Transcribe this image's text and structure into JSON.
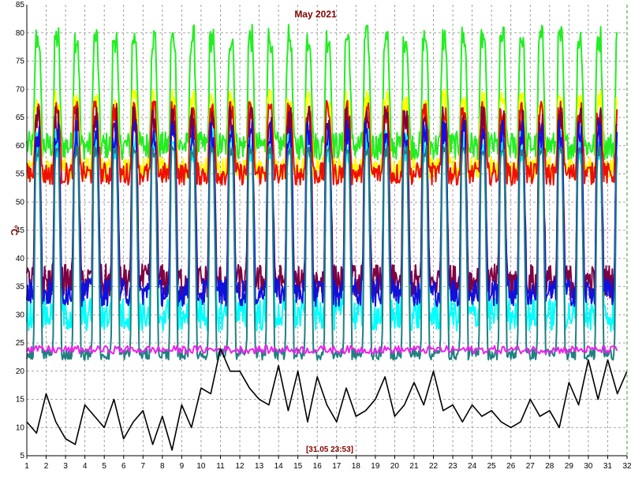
{
  "chart_data": {
    "type": "line",
    "title": "May 2021",
    "ylabel": "°C",
    "footer": "[31.05 23:53]",
    "xlim": [
      1,
      32
    ],
    "ylim": [
      5,
      85
    ],
    "x_ticks": [
      "1",
      "2",
      "3",
      "4",
      "5",
      "6",
      "7",
      "8",
      "9",
      "10",
      "11",
      "12",
      "13",
      "14",
      "15",
      "16",
      "17",
      "18",
      "19",
      "20",
      "21",
      "22",
      "23",
      "24",
      "25",
      "26",
      "27",
      "28",
      "29",
      "30",
      "31",
      "32"
    ],
    "y_ticks": [
      5,
      10,
      15,
      20,
      25,
      30,
      35,
      40,
      45,
      50,
      55,
      60,
      65,
      70,
      75,
      80,
      85
    ],
    "grid": true,
    "colors": {
      "title": "#800000",
      "footer": "#800000",
      "ylabel": "#800000",
      "grid": "#8a8a8a",
      "axis": "#000000",
      "border": "#339933"
    },
    "series": [
      {
        "color": "#22ee22",
        "peak": 79,
        "base": 60,
        "jitter": 2.5
      },
      {
        "color": "#ffff00",
        "peak": 68,
        "base": 56,
        "jitter": 2
      },
      {
        "color": "#ee1100",
        "peak": 66,
        "base": 55,
        "jitter": 2
      },
      {
        "color": "#800040",
        "peak": 64,
        "base": 36,
        "jitter": 3
      },
      {
        "color": "#00ffff",
        "peak": 60,
        "base": 30,
        "jitter": 3
      },
      {
        "color": "#1111dd",
        "peak": 62,
        "base": 34,
        "jitter": 2.5
      },
      {
        "color": "#208080",
        "peak": 59,
        "base": 23,
        "jitter": 1
      },
      {
        "color": "#ee22ee",
        "level": 23.8,
        "jitter": 0.7
      },
      {
        "color": "#000000",
        "x": [
          1,
          1.5,
          2,
          2.5,
          3,
          3.5,
          4,
          4.5,
          5,
          5.5,
          6,
          6.5,
          7,
          7.5,
          8,
          8.5,
          9,
          9.5,
          10,
          10.5,
          11,
          11.5,
          12,
          12.5,
          13,
          13.5,
          14,
          14.5,
          15,
          15.5,
          16,
          16.5,
          17,
          17.5,
          18,
          18.5,
          19,
          19.5,
          20,
          20.5,
          21,
          21.5,
          22,
          22.5,
          23,
          23.5,
          24,
          24.5,
          25,
          25.5,
          26,
          26.5,
          27,
          27.5,
          28,
          28.5,
          29,
          29.5,
          30,
          30.5,
          31,
          31.5,
          32
        ],
        "y": [
          11,
          9,
          16,
          11,
          8,
          7,
          14,
          12,
          10,
          15,
          8,
          11,
          13,
          7,
          12,
          6,
          14,
          10,
          17,
          16,
          24,
          20,
          20,
          17,
          15,
          14,
          21,
          13,
          20,
          11,
          19,
          14,
          11,
          17,
          12,
          13,
          15,
          19,
          12,
          14,
          18,
          14,
          20,
          13,
          14,
          11,
          14,
          12,
          13,
          11,
          10,
          11,
          15,
          12,
          13,
          10,
          18,
          14,
          22,
          15,
          22,
          16,
          20
        ]
      }
    ]
  }
}
